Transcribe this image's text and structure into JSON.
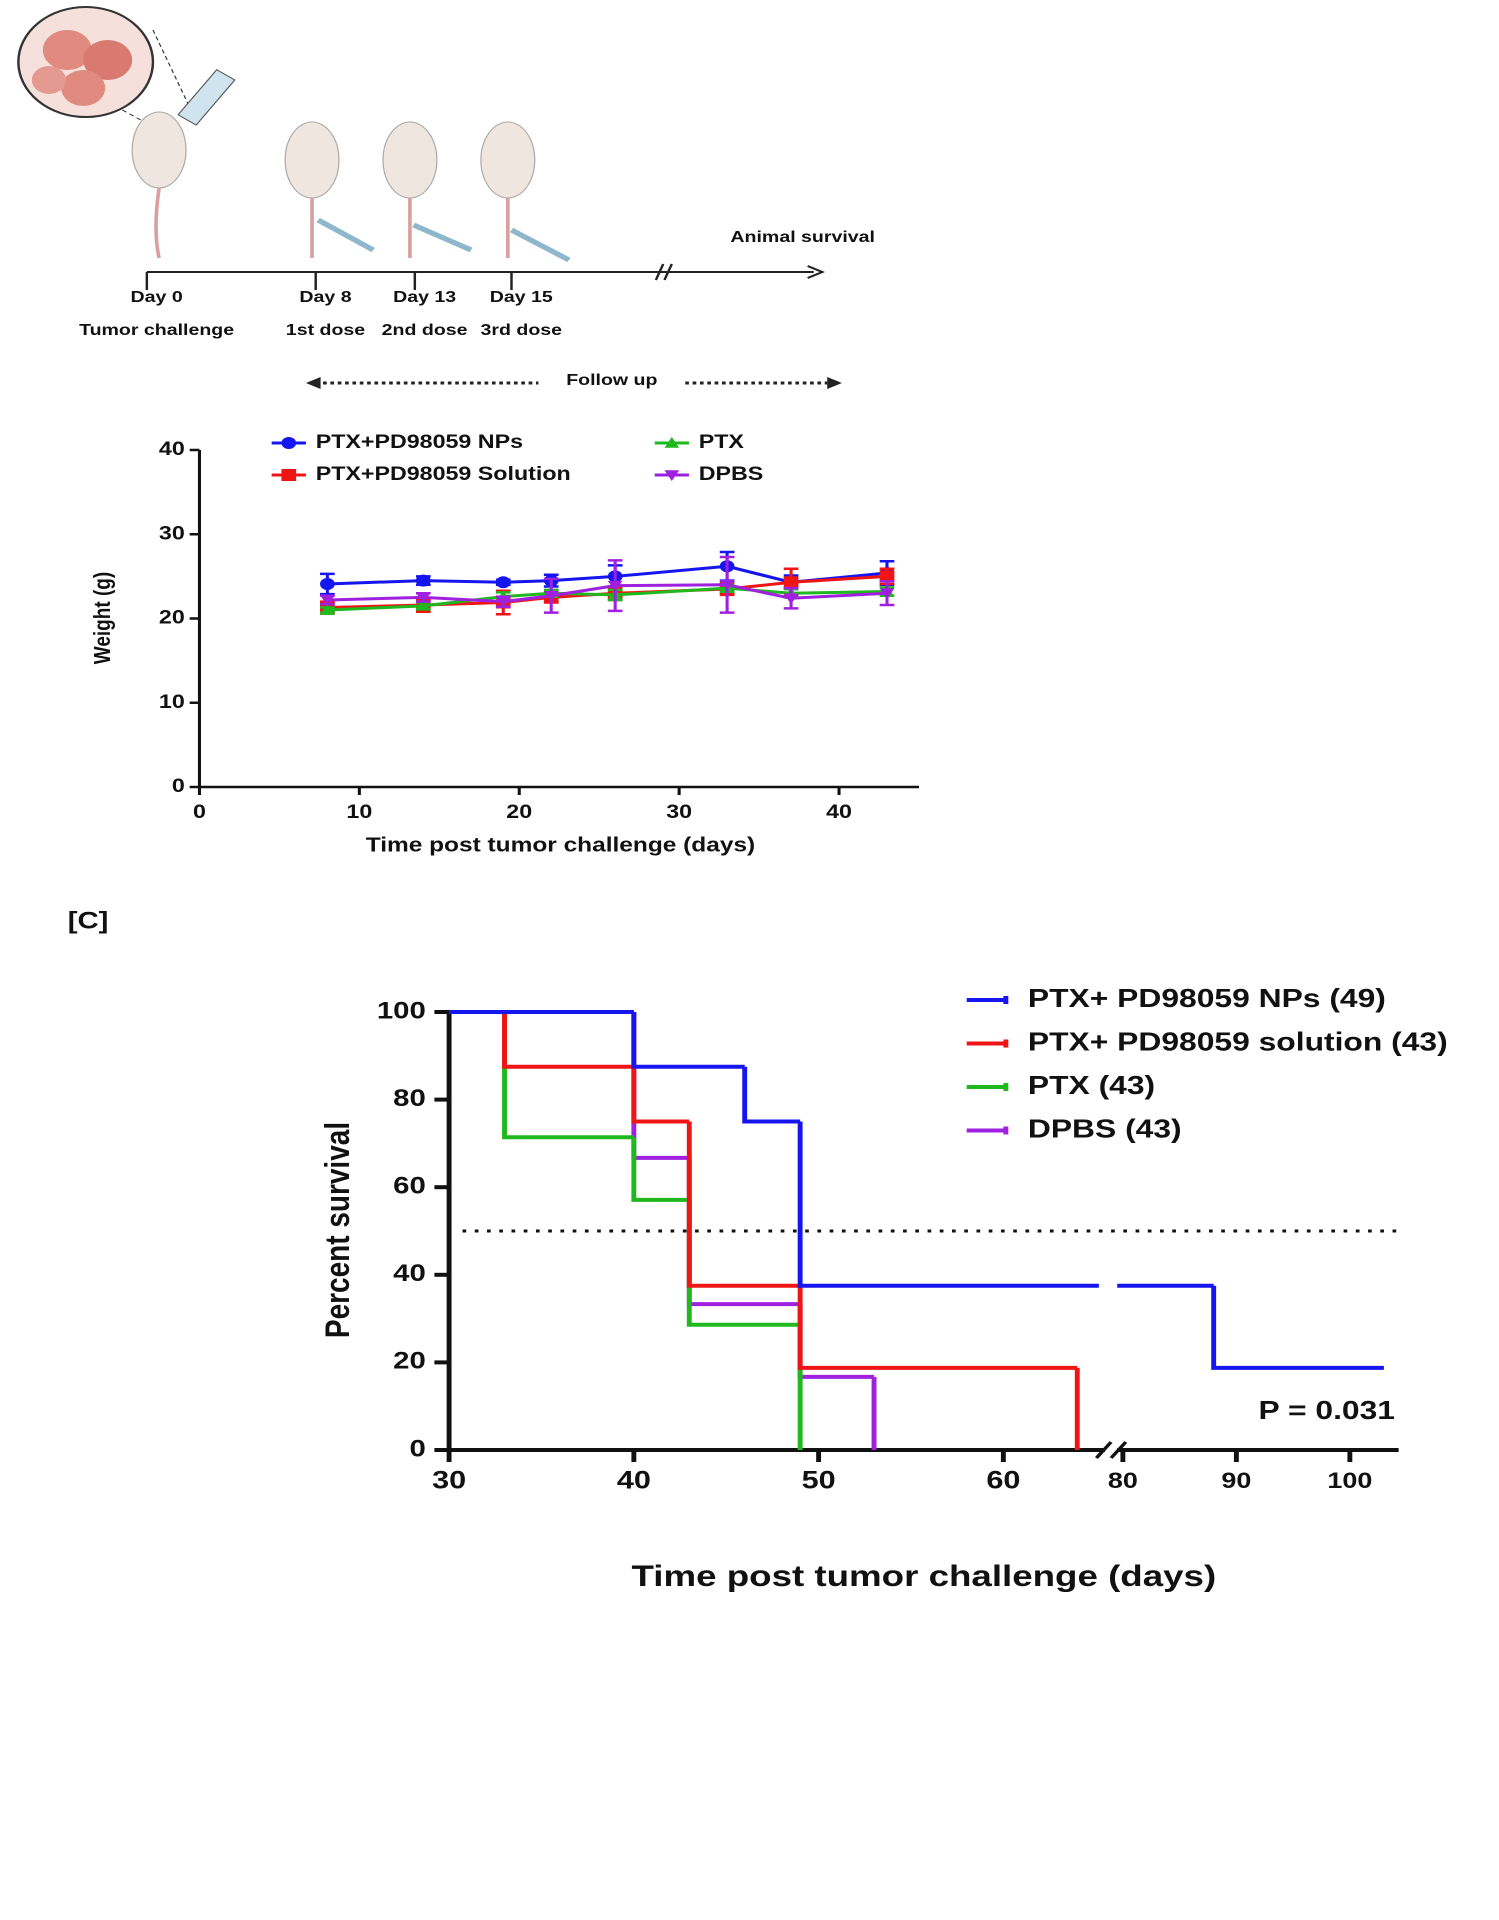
{
  "diagram": {
    "timeline": [
      {
        "day": "Day 0",
        "label": "Tumor challenge"
      },
      {
        "day": "Day 8",
        "label": "1st dose"
      },
      {
        "day": "Day 13",
        "label": "2nd dose"
      },
      {
        "day": "Day 15",
        "label": "3rd dose"
      }
    ],
    "end_label": "Animal survival",
    "follow_up": "Follow up"
  },
  "panel_label": "[C]",
  "chart_data": [
    {
      "type": "line",
      "y_label": "Weight (g)",
      "x_label": "Time post tumor challenge (days)",
      "x": [
        8,
        14,
        19,
        22,
        26,
        33,
        37,
        43
      ],
      "xlim": [
        0,
        45
      ],
      "xticks": [
        0,
        10,
        20,
        30,
        40
      ],
      "ylim": [
        0,
        40
      ],
      "yticks": [
        0,
        10,
        20,
        30,
        40
      ],
      "series": [
        {
          "name": "PTX+PD98059 NPs",
          "color": "#1515f0",
          "marker": "circle",
          "values": [
            24.1,
            24.5,
            24.3,
            24.5,
            25.0,
            26.2,
            24.3,
            25.4
          ],
          "errors": [
            1.2,
            0.5,
            0.3,
            0.7,
            1.3,
            1.7,
            0.8,
            1.4
          ]
        },
        {
          "name": "PTX+PD98059 Solution",
          "color": "#f01515",
          "marker": "square",
          "values": [
            21.3,
            21.6,
            21.9,
            22.5,
            23.0,
            23.5,
            24.3,
            25.0
          ],
          "errors": [
            0.7,
            0.8,
            1.4,
            0.6,
            0.8,
            0.7,
            1.6,
            0.9
          ]
        },
        {
          "name": "PTX",
          "color": "#1fb81f",
          "marker": "triangle-up",
          "values": [
            21.0,
            21.5,
            22.6,
            23.0,
            22.8,
            23.6,
            23.0,
            23.2
          ],
          "errors": [
            0.3,
            0.4,
            0.5,
            0.4,
            0.6,
            0.4,
            0.5,
            0.5
          ]
        },
        {
          "name": "DPBS",
          "color": "#a020e0",
          "marker": "triangle-down",
          "values": [
            22.2,
            22.5,
            22.0,
            22.7,
            23.9,
            24.0,
            22.4,
            23.0
          ],
          "errors": [
            0.5,
            0.5,
            0.6,
            2.0,
            3.0,
            3.3,
            1.2,
            1.4
          ]
        }
      ]
    },
    {
      "type": "step",
      "y_label": "Percent survival",
      "x_label": "Time post tumor challenge (days)",
      "x_segments": [
        {
          "xlim": [
            30,
            65.5
          ],
          "xticks": [
            30,
            40,
            50,
            60
          ]
        },
        {
          "xlim": [
            79.5,
            104.3
          ],
          "xticks": [
            80,
            90,
            100
          ]
        }
      ],
      "ylim": [
        0,
        100
      ],
      "yticks": [
        0,
        20,
        40,
        60,
        80,
        100
      ],
      "median_line": 50,
      "annotation": "P = 0.031",
      "series": [
        {
          "name": "PTX+ PD98059 NPs (49)",
          "color": "#1515f0",
          "x": [
            30,
            40,
            46,
            49,
            88,
            103
          ],
          "values": [
            100,
            87.5,
            75,
            37.5,
            18.75,
            18.75
          ]
        },
        {
          "name": "PTX+ PD98059 solution (43)",
          "color": "#f01515",
          "x": [
            30,
            33,
            40,
            43,
            49,
            64
          ],
          "values": [
            100,
            87.5,
            75,
            37.5,
            18.75,
            0
          ]
        },
        {
          "name": "PTX (43)",
          "color": "#1fb81f",
          "x": [
            30,
            33,
            40,
            43,
            49
          ],
          "values": [
            100,
            71.4,
            57.1,
            28.6,
            0
          ]
        },
        {
          "name": "DPBS (43)",
          "color": "#a020e0",
          "x": [
            30,
            40,
            43,
            49,
            53
          ],
          "values": [
            100,
            66.7,
            33.3,
            16.7,
            0
          ]
        }
      ]
    }
  ]
}
